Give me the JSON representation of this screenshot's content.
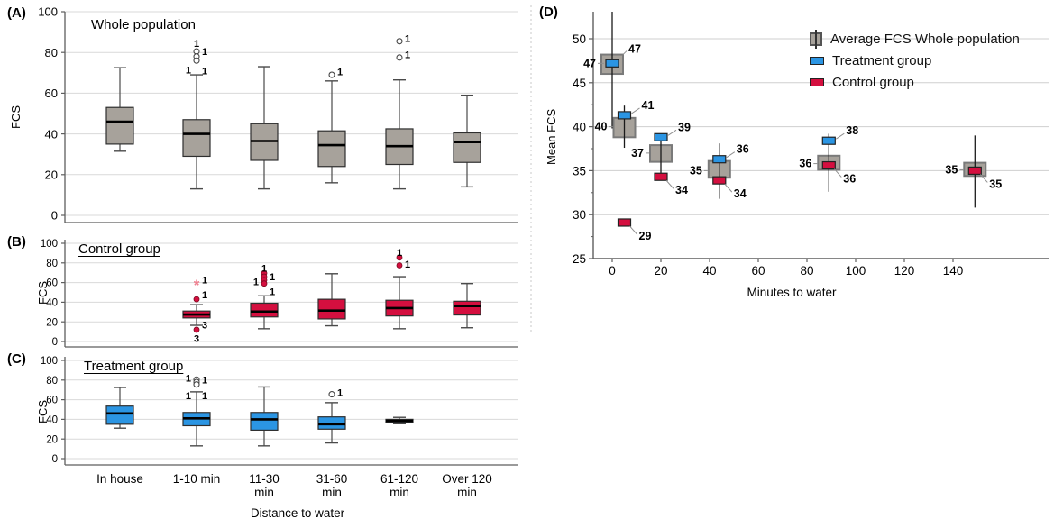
{
  "colors": {
    "whole_fill": "#a7a29b",
    "treatment_fill": "#2b95e3",
    "control_fill": "#d40f3f",
    "box_stroke": "#2f2f2f",
    "whole_stroke_d": "#7a7a7a",
    "grid": "#d9d9d9",
    "axis": "#5e5e5e",
    "whisker": "#4a4a4a",
    "outlier_dot": "#d40f3f",
    "outlier_star": "#ef8090",
    "leader": "#909090",
    "divider": "#c9c9c9",
    "text": "#000000"
  },
  "panel_a": {
    "tag": "(A)",
    "title": "Whole population",
    "ylabel": "FCS"
  },
  "panel_b": {
    "tag": "(B)",
    "title": "Control group",
    "ylabel": "FCS"
  },
  "panel_c": {
    "tag": "(C)",
    "title": "Treatment group",
    "ylabel": "FCS"
  },
  "panel_d": {
    "tag": "(D)",
    "ylabel": "Mean FCS",
    "xlabel": "Minutes to water",
    "legend": [
      {
        "label": "Average FCS Whole population",
        "series": "whole"
      },
      {
        "label": "Treatment group",
        "series": "treatment"
      },
      {
        "label": "Control group",
        "series": "control"
      }
    ]
  },
  "distance_axis": {
    "label": "Distance to water",
    "categories": [
      "In house",
      "1-10 min",
      "11-30 min",
      "31-60 min",
      "61-120 min",
      "Over 120 min"
    ],
    "categories_lines": [
      [
        "In house"
      ],
      [
        "1-10 min"
      ],
      [
        "11-30",
        "min"
      ],
      [
        "31-60",
        "min"
      ],
      [
        "61-120",
        "min"
      ],
      [
        "Over 120",
        "min"
      ]
    ]
  },
  "chart_data": [
    {
      "panel": "A",
      "type": "box",
      "title": "Whole population",
      "series": "whole",
      "xlabel": "Distance to water",
      "ylabel": "FCS",
      "ylim": [
        0,
        100
      ],
      "yticks": [
        0,
        20,
        40,
        60,
        80,
        100
      ],
      "grid": true,
      "categories": [
        "In house",
        "1-10 min",
        "11-30 min",
        "31-60 min",
        "61-120 min",
        "Over 120 min"
      ],
      "boxes": [
        {
          "cat": "In house",
          "lo": 31.5,
          "q1": 35,
          "med": 46,
          "q3": 53,
          "hi": 72.5,
          "outliers": [],
          "labels": []
        },
        {
          "cat": "1-10 min",
          "lo": 13,
          "q1": 29,
          "med": 40,
          "q3": 47,
          "hi": 69,
          "outliers": [
            {
              "v": 80.5,
              "m": "circle"
            },
            {
              "v": 78,
              "m": "circle"
            },
            {
              "v": 76,
              "m": "circle"
            }
          ],
          "labels": [
            {
              "t": "1",
              "v": 84.5,
              "s": "above"
            },
            {
              "t": "1",
              "v": 80.5,
              "s": "right"
            },
            {
              "t": "1",
              "v": 71.5,
              "s": "left"
            },
            {
              "t": "1",
              "v": 71,
              "s": "right"
            }
          ]
        },
        {
          "cat": "11-30 min",
          "lo": 13,
          "q1": 27,
          "med": 36.5,
          "q3": 45,
          "hi": 73,
          "outliers": [],
          "labels": []
        },
        {
          "cat": "31-60 min",
          "lo": 16,
          "q1": 24,
          "med": 34.5,
          "q3": 41.5,
          "hi": 66,
          "outliers": [
            {
              "v": 69,
              "m": "circle"
            }
          ],
          "labels": [
            {
              "t": "1",
              "v": 70.5,
              "s": "right"
            }
          ]
        },
        {
          "cat": "61-120 min",
          "lo": 13,
          "q1": 25,
          "med": 34,
          "q3": 42.5,
          "hi": 66.5,
          "outliers": [
            {
              "v": 85.5,
              "m": "circle"
            },
            {
              "v": 77.5,
              "m": "circle"
            }
          ],
          "labels": [
            {
              "t": "1",
              "v": 87,
              "s": "right"
            },
            {
              "t": "1",
              "v": 79,
              "s": "right"
            }
          ]
        },
        {
          "cat": "Over 120 min",
          "lo": 14,
          "q1": 26,
          "med": 36,
          "q3": 40.5,
          "hi": 59,
          "outliers": [],
          "labels": []
        }
      ]
    },
    {
      "panel": "B",
      "type": "box",
      "title": "Control group",
      "series": "control",
      "xlabel": "Distance to water",
      "ylabel": "FCS",
      "ylim": [
        0,
        100
      ],
      "yticks": [
        0,
        20,
        40,
        60,
        80,
        100
      ],
      "grid": true,
      "categories": [
        "In house",
        "1-10 min",
        "11-30 min",
        "31-60 min",
        "61-120 min",
        "Over 120 min"
      ],
      "boxes": [
        null,
        {
          "cat": "1-10 min",
          "lo": 16.5,
          "q1": 24,
          "med": 27.5,
          "q3": 31,
          "hi": 37.5,
          "outliers": [
            {
              "v": 58,
              "m": "star"
            },
            {
              "v": 43,
              "m": "dot"
            },
            {
              "v": 12,
              "m": "dot"
            }
          ],
          "labels": [
            {
              "t": "1",
              "v": 63,
              "s": "right"
            },
            {
              "t": "1",
              "v": 47.5,
              "s": "right"
            },
            {
              "t": "3",
              "v": 17,
              "s": "right"
            },
            {
              "t": "3",
              "v": 3,
              "s": "below"
            }
          ]
        },
        {
          "cat": "11-30 min",
          "lo": 13,
          "q1": 25,
          "med": 30.5,
          "q3": 39,
          "hi": 46.5,
          "outliers": [
            {
              "v": 69.5,
              "m": "dot"
            },
            {
              "v": 66,
              "m": "dot"
            },
            {
              "v": 62.5,
              "m": "dot"
            },
            {
              "v": 59,
              "m": "dot"
            }
          ],
          "labels": [
            {
              "t": "1",
              "v": 75,
              "s": "above"
            },
            {
              "t": "1",
              "v": 66,
              "s": "right"
            },
            {
              "t": "1",
              "v": 61,
              "s": "left"
            },
            {
              "t": "1",
              "v": 51,
              "s": "right"
            }
          ]
        },
        {
          "cat": "31-60 min",
          "lo": 16,
          "q1": 23,
          "med": 31.5,
          "q3": 43,
          "hi": 69,
          "outliers": [],
          "labels": []
        },
        {
          "cat": "61-120 min",
          "lo": 13,
          "q1": 26,
          "med": 34,
          "q3": 42,
          "hi": 66,
          "outliers": [
            {
              "v": 85.5,
              "m": "dot"
            },
            {
              "v": 77.5,
              "m": "dot"
            }
          ],
          "labels": [
            {
              "t": "1",
              "v": 91,
              "s": "above"
            },
            {
              "t": "1",
              "v": 79,
              "s": "right"
            }
          ]
        },
        {
          "cat": "Over 120 min",
          "lo": 14,
          "q1": 27,
          "med": 36,
          "q3": 41,
          "hi": 59,
          "outliers": [],
          "labels": []
        }
      ]
    },
    {
      "panel": "C",
      "type": "box",
      "title": "Treatment group",
      "series": "treatment",
      "xlabel": "Distance to water",
      "ylabel": "FCS",
      "ylim": [
        0,
        100
      ],
      "yticks": [
        0,
        20,
        40,
        60,
        80,
        100
      ],
      "grid": true,
      "categories": [
        "In house",
        "1-10 min",
        "11-30 min",
        "31-60 min",
        "61-120 min",
        "Over 120 min"
      ],
      "boxes": [
        {
          "cat": "In house",
          "lo": 31,
          "q1": 35,
          "med": 46,
          "q3": 53.5,
          "hi": 72.5,
          "outliers": [],
          "labels": []
        },
        {
          "cat": "1-10 min",
          "lo": 13,
          "q1": 33.5,
          "med": 41,
          "q3": 47,
          "hi": 68,
          "outliers": [
            {
              "v": 80.5,
              "m": "circle"
            },
            {
              "v": 78,
              "m": "circle"
            },
            {
              "v": 75.5,
              "m": "circle"
            }
          ],
          "labels": [
            {
              "t": "1",
              "v": 82,
              "s": "left"
            },
            {
              "t": "1",
              "v": 80.5,
              "s": "right"
            },
            {
              "t": "1",
              "v": 64,
              "s": "left"
            },
            {
              "t": "1",
              "v": 64,
              "s": "right"
            }
          ]
        },
        {
          "cat": "11-30 min",
          "lo": 13,
          "q1": 29,
          "med": 40,
          "q3": 47,
          "hi": 73,
          "outliers": [],
          "labels": []
        },
        {
          "cat": "31-60 min",
          "lo": 16,
          "q1": 30,
          "med": 35,
          "q3": 42.5,
          "hi": 57,
          "outliers": [
            {
              "v": 65.5,
              "m": "circle"
            }
          ],
          "labels": [
            {
              "t": "1",
              "v": 67.5,
              "s": "right"
            }
          ]
        },
        {
          "cat": "61-120 min",
          "lo": 35.5,
          "q1": 37,
          "med": 38.5,
          "q3": 40,
          "hi": 42,
          "outliers": [],
          "labels": []
        },
        null
      ]
    },
    {
      "panel": "D",
      "type": "interval",
      "ylabel": "Mean FCS",
      "xlabel": "Minutes to water",
      "ylim": [
        25,
        53.5
      ],
      "yticks": [
        25,
        30,
        35,
        40,
        45,
        50
      ],
      "xlim": [
        -8,
        180
      ],
      "xticks": [
        0,
        20,
        40,
        60,
        80,
        100,
        120,
        140
      ],
      "grid": true,
      "legend_position": "top-right",
      "clusters": [
        {
          "x": 0,
          "whole": {
            "mean": 47,
            "q1": 46,
            "q3": 48.2,
            "ci_lo": 39.8,
            "ci_hi": 53.2,
            "label": "47",
            "side": "right"
          },
          "treatment": {
            "mean": 47.2,
            "label": "47",
            "side": "left"
          },
          "control": null
        },
        {
          "x": 5,
          "whole": {
            "mean": 40,
            "q1": 38.8,
            "q3": 41,
            "ci_lo": 37.6,
            "ci_hi": 42.4,
            "label": "40",
            "side": "left"
          },
          "treatment": {
            "mean": 41.3,
            "label": "41",
            "side": "right"
          },
          "control": {
            "mean": 29.1,
            "label": "29",
            "side": "below-right"
          }
        },
        {
          "x": 20,
          "whole": {
            "mean": 37,
            "q1": 36,
            "q3": 37.9,
            "ci_lo": 34.6,
            "ci_hi": 38.9,
            "label": "37",
            "side": "left"
          },
          "treatment": {
            "mean": 38.8,
            "label": "39",
            "side": "right"
          },
          "control": {
            "mean": 34.3,
            "label": "34",
            "side": "below-right"
          }
        },
        {
          "x": 44,
          "whole": {
            "mean": 35,
            "q1": 34.2,
            "q3": 36.1,
            "ci_lo": 31.8,
            "ci_hi": 38.1,
            "label": "35",
            "side": "left"
          },
          "treatment": {
            "mean": 36.3,
            "label": "36",
            "side": "right"
          },
          "control": {
            "mean": 33.9,
            "label": "34",
            "side": "below-right"
          }
        },
        {
          "x": 89,
          "whole": {
            "mean": 35.8,
            "q1": 35.1,
            "q3": 36.7,
            "ci_lo": 32.6,
            "ci_hi": 39.2,
            "label": "36",
            "side": "left"
          },
          "treatment": {
            "mean": 38.4,
            "label": "38",
            "side": "right"
          },
          "control": {
            "mean": 35.6,
            "label": "36",
            "side": "below-right"
          }
        },
        {
          "x": 149,
          "whole": {
            "mean": 35.1,
            "q1": 34.4,
            "q3": 35.9,
            "ci_lo": 30.8,
            "ci_hi": 39,
            "label": "35",
            "side": "left"
          },
          "treatment": null,
          "control": {
            "mean": 35,
            "label": "35",
            "side": "below-right"
          }
        }
      ]
    }
  ]
}
